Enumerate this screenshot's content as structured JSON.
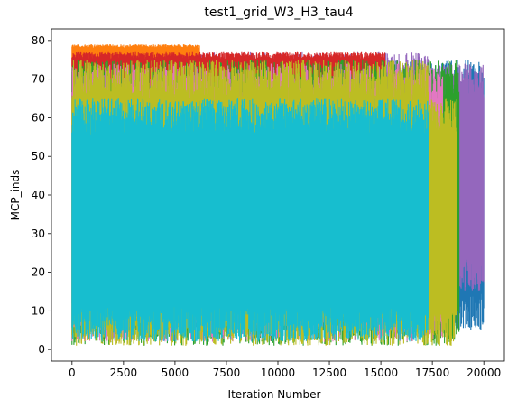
{
  "chart_data": {
    "type": "line",
    "title": "test1_grid_W3_H3_tau4",
    "xlabel": "Iteration Number",
    "ylabel": "MCP_inds",
    "xlim": [
      -1000,
      21000
    ],
    "ylim": [
      -3,
      83
    ],
    "xticks": [
      0,
      2500,
      5000,
      7500,
      10000,
      12500,
      15000,
      17500,
      20000
    ],
    "yticks": [
      0,
      10,
      20,
      30,
      40,
      50,
      60,
      70,
      80
    ],
    "grid": false,
    "legend": "none",
    "series_rendering": "dense vertical oscillation bands (values drawn in data units)",
    "series": [
      {
        "color": "#1f77b4",
        "x_end": 20000,
        "y_min": 5,
        "y_max": 75,
        "tail_y_range": [
          5,
          75
        ]
      },
      {
        "color": "#9467bd",
        "x_end": 20000,
        "y_min": 15,
        "y_max": 77,
        "tail_y_range": [
          15,
          74
        ]
      },
      {
        "color": "#ff7f0e",
        "x_end": 6200,
        "y_min": 73,
        "y_max": 79,
        "tail_y_range": [
          73,
          79
        ]
      },
      {
        "color": "#d62728",
        "x_end": 15200,
        "y_min": 65,
        "y_max": 77,
        "tail_y_range": [
          65,
          77
        ]
      },
      {
        "color": "#2ca02c",
        "x_end": 18800,
        "y_min": 1,
        "y_max": 75,
        "tail_y_range": [
          1,
          75
        ]
      },
      {
        "color": "#e377c2",
        "x_end": 18000,
        "y_min": 2,
        "y_max": 74,
        "tail_y_range": [
          2,
          73
        ]
      },
      {
        "color": "#bcbd22",
        "x_end": 18700,
        "y_min": 1,
        "y_max": 75,
        "tail_y_range": [
          1,
          65
        ]
      },
      {
        "color": "#17becf",
        "x_end": 17300,
        "y_min": 2,
        "y_max": 65,
        "tail_y_range": [
          2,
          65
        ]
      }
    ]
  }
}
